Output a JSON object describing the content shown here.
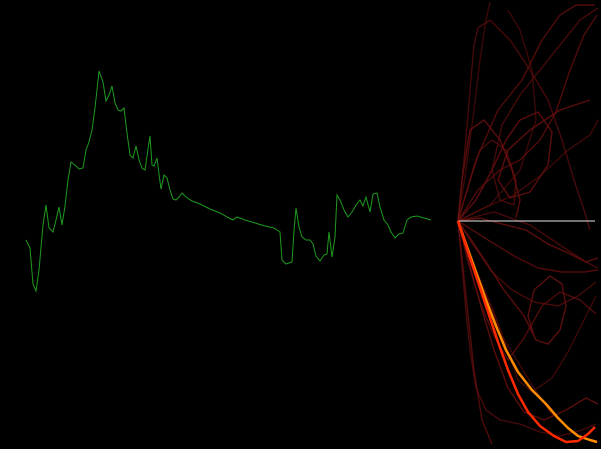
{
  "colors": {
    "background": "#000000",
    "waveform": "#1f9a1f",
    "baseline": "#e6e6e6",
    "ghost_trails": "#6b0f0f",
    "highlight_primary": "#ff8c00",
    "highlight_secondary": "#ff2a00"
  }
}
